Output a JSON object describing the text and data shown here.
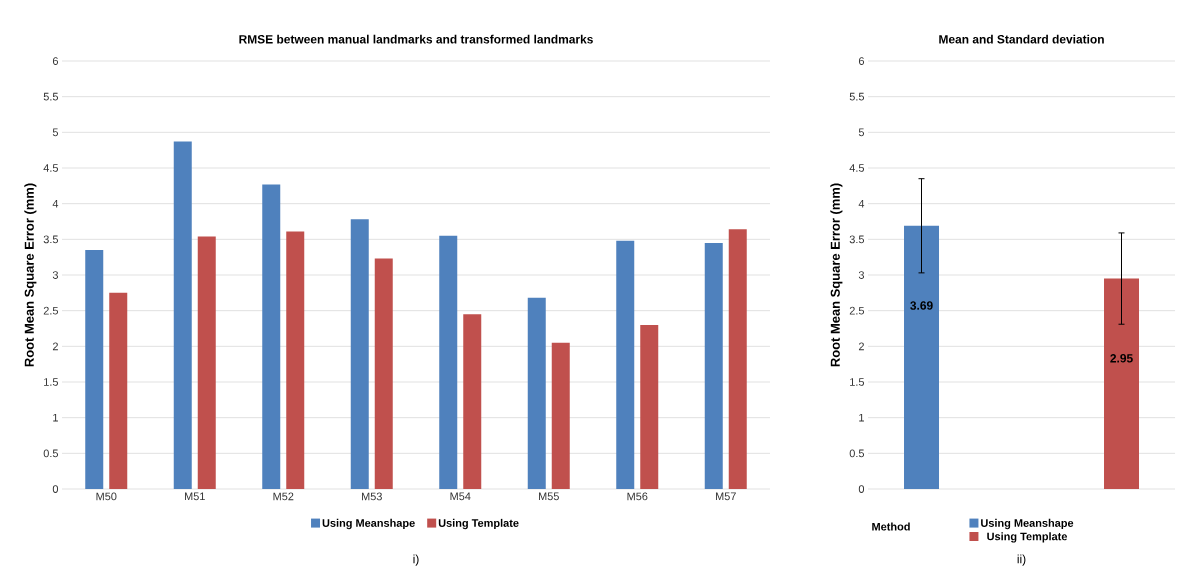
{
  "chart_data": [
    {
      "type": "bar",
      "title": "RMSE between manual landmarks and transformed landmarks",
      "ylabel": "Root Mean Square Error (mm)",
      "categories": [
        "M50",
        "M51",
        "M52",
        "M53",
        "M54",
        "M55",
        "M56",
        "M57"
      ],
      "series": [
        {
          "name": "Using Meanshape",
          "color": "#4f81bd",
          "values": [
            3.35,
            4.87,
            4.27,
            3.78,
            3.55,
            2.68,
            3.48,
            3.45
          ]
        },
        {
          "name": "Using Template",
          "color": "#c0504d",
          "values": [
            2.75,
            3.54,
            3.61,
            3.23,
            2.45,
            2.05,
            2.3,
            3.64
          ]
        }
      ],
      "ylim": [
        0,
        6
      ],
      "yticks": [
        0,
        0.5,
        1,
        1.5,
        2,
        2.5,
        3,
        3.5,
        4,
        4.5,
        5,
        5.5,
        6
      ],
      "grid": "y",
      "legend": "bottom",
      "annotations": [
        "i)"
      ]
    },
    {
      "type": "bar",
      "title": "Mean and Standard deviation",
      "ylabel": "Root Mean Square Error (mm)",
      "xlabel": "Method",
      "categories": [
        null
      ],
      "series": [
        {
          "name": "Using Meanshape",
          "color": "#4f81bd",
          "values": [
            3.69
          ],
          "errors": [
            0.66
          ]
        },
        {
          "name": "Using Template",
          "color": "#c0504d",
          "values": [
            2.95
          ],
          "errors": [
            0.64
          ]
        }
      ],
      "ylim": [
        0,
        6
      ],
      "yticks": [
        0,
        0.5,
        1,
        1.5,
        2,
        2.5,
        3,
        3.5,
        4,
        4.5,
        5,
        5.5,
        6
      ],
      "grid": "y",
      "legend": "bottom",
      "data_labels": true,
      "annotations": [
        "ii)"
      ]
    }
  ]
}
